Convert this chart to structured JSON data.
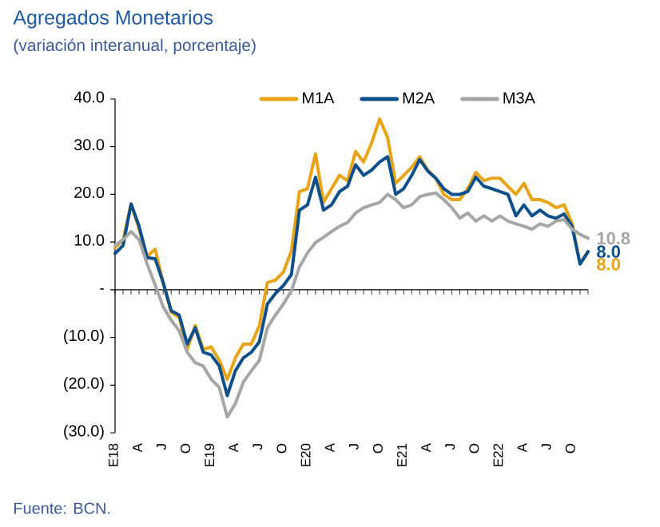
{
  "chart_data": {
    "type": "line",
    "title": "Agregados Monetarios",
    "subtitle": "(variación interanual, porcentaje)",
    "annotations": [
      "Fuente: BCN."
    ],
    "categories": [
      "E18",
      null,
      null,
      "A",
      null,
      null,
      "J",
      null,
      null,
      "O",
      null,
      null,
      "E19",
      null,
      null,
      "A",
      null,
      null,
      "J",
      null,
      null,
      "O",
      null,
      null,
      "E20",
      null,
      null,
      "A",
      null,
      null,
      "J",
      null,
      null,
      "O",
      null,
      null,
      "E21",
      null,
      null,
      "A",
      null,
      null,
      "J",
      null,
      null,
      "O",
      null,
      null,
      "E22",
      null,
      null,
      "A",
      null,
      null,
      "J",
      null,
      null,
      "O",
      null,
      null
    ],
    "series": [
      {
        "name": "M1A",
        "color": "#e8a317",
        "values": [
          8.8,
          10.5,
          18,
          12.7,
          7,
          8.5,
          1.5,
          -4.7,
          -5.8,
          -12.5,
          -7.5,
          -12.5,
          -12,
          -14.8,
          -18.8,
          -14.3,
          -11.4,
          -11.4,
          -7.5,
          1.5,
          2,
          3.7,
          8.2,
          20.6,
          21.2,
          28.5,
          18.3,
          21.2,
          24,
          22.9,
          29,
          26.8,
          30.8,
          35.8,
          31.9,
          22.3,
          24,
          25.7,
          27.9,
          25.1,
          23.4,
          20,
          18.9,
          18.9,
          21.2,
          24.6,
          22.9,
          23.4,
          23.4,
          21.7,
          20,
          22.3,
          18.9,
          18.9,
          18.3,
          17.2,
          17.8,
          13.9,
          5.4,
          8.0
        ],
        "value_labels": [
          null,
          null,
          null,
          null,
          null,
          null,
          null,
          null,
          null,
          null,
          null,
          null,
          null,
          null,
          null,
          null,
          null,
          null,
          null,
          null,
          null,
          null,
          null,
          null,
          null,
          null,
          null,
          null,
          null,
          null,
          null,
          null,
          null,
          null,
          null,
          null,
          null,
          null,
          null,
          null,
          null,
          null,
          null,
          null,
          null,
          null,
          null,
          null,
          null,
          null,
          null,
          null,
          null,
          null,
          null,
          null,
          null,
          null,
          null,
          "8.0"
        ]
      },
      {
        "name": "M2A",
        "color": "#0d4f8b",
        "values": [
          7.6,
          9.3,
          18,
          13.3,
          6.7,
          6.5,
          1.5,
          -4.4,
          -5.3,
          -11.4,
          -8,
          -13.1,
          -13.7,
          -16,
          -22.2,
          -17,
          -14.3,
          -13.1,
          -10.9,
          -3,
          -0.8,
          0.9,
          3.2,
          16.7,
          17.8,
          23.6,
          16.7,
          17.8,
          20.6,
          21.7,
          26.2,
          24,
          25.1,
          26.8,
          27.9,
          20,
          21.2,
          24,
          27.3,
          24.9,
          23.4,
          21.2,
          20,
          20,
          20.6,
          23.6,
          21.7,
          21.2,
          20.6,
          20,
          15.5,
          17.8,
          15.5,
          16.7,
          15.5,
          15,
          15.9,
          13.3,
          5.4,
          8.0
        ],
        "value_labels": [
          null,
          null,
          null,
          null,
          null,
          null,
          null,
          null,
          null,
          null,
          null,
          null,
          null,
          null,
          null,
          null,
          null,
          null,
          null,
          null,
          null,
          null,
          null,
          null,
          null,
          null,
          null,
          null,
          null,
          null,
          null,
          null,
          null,
          null,
          null,
          null,
          null,
          null,
          null,
          null,
          null,
          null,
          null,
          null,
          null,
          null,
          null,
          null,
          null,
          null,
          null,
          null,
          null,
          null,
          null,
          null,
          null,
          null,
          null,
          "8.0"
        ]
      },
      {
        "name": "M3A",
        "color": "#a6a6a6",
        "values": [
          9.3,
          10.5,
          12.2,
          10.5,
          5.4,
          1,
          -3.6,
          -6.4,
          -8.6,
          -13.1,
          -15.3,
          -16,
          -18.8,
          -20.5,
          -26.7,
          -23.9,
          -19.4,
          -17,
          -14.8,
          -8,
          -5.3,
          -3,
          -0.2,
          4.8,
          7.7,
          9.9,
          11,
          12.2,
          13.3,
          14.1,
          16.1,
          17.2,
          17.8,
          18.3,
          20,
          18.9,
          17.2,
          17.8,
          19.5,
          20,
          20.3,
          18.9,
          17.2,
          15,
          16.1,
          14.4,
          15.5,
          14.4,
          15.5,
          14.4,
          13.8,
          13.3,
          12.7,
          13.8,
          13.3,
          14.4,
          14.7,
          12.7,
          11.6,
          10.8
        ],
        "value_labels": [
          null,
          null,
          null,
          null,
          null,
          null,
          null,
          null,
          null,
          null,
          null,
          null,
          null,
          null,
          null,
          null,
          null,
          null,
          null,
          null,
          null,
          null,
          null,
          null,
          null,
          null,
          null,
          null,
          null,
          null,
          null,
          null,
          null,
          null,
          null,
          null,
          null,
          null,
          null,
          null,
          null,
          null,
          null,
          null,
          null,
          null,
          null,
          null,
          null,
          null,
          null,
          null,
          null,
          null,
          null,
          null,
          null,
          null,
          null,
          "10.8"
        ]
      }
    ],
    "ylim": [
      -30,
      40
    ],
    "yticks": [
      {
        "value": -30,
        "label": "(30.0)"
      },
      {
        "value": -20,
        "label": "(20.0)"
      },
      {
        "value": -10,
        "label": "(10.0)"
      },
      {
        "value": 0,
        "label": "-"
      },
      {
        "value": 10,
        "label": "10.0"
      },
      {
        "value": 20,
        "label": "20.0"
      },
      {
        "value": 30,
        "label": "30.0"
      },
      {
        "value": 40,
        "label": "40.0"
      }
    ],
    "legend": "top"
  }
}
